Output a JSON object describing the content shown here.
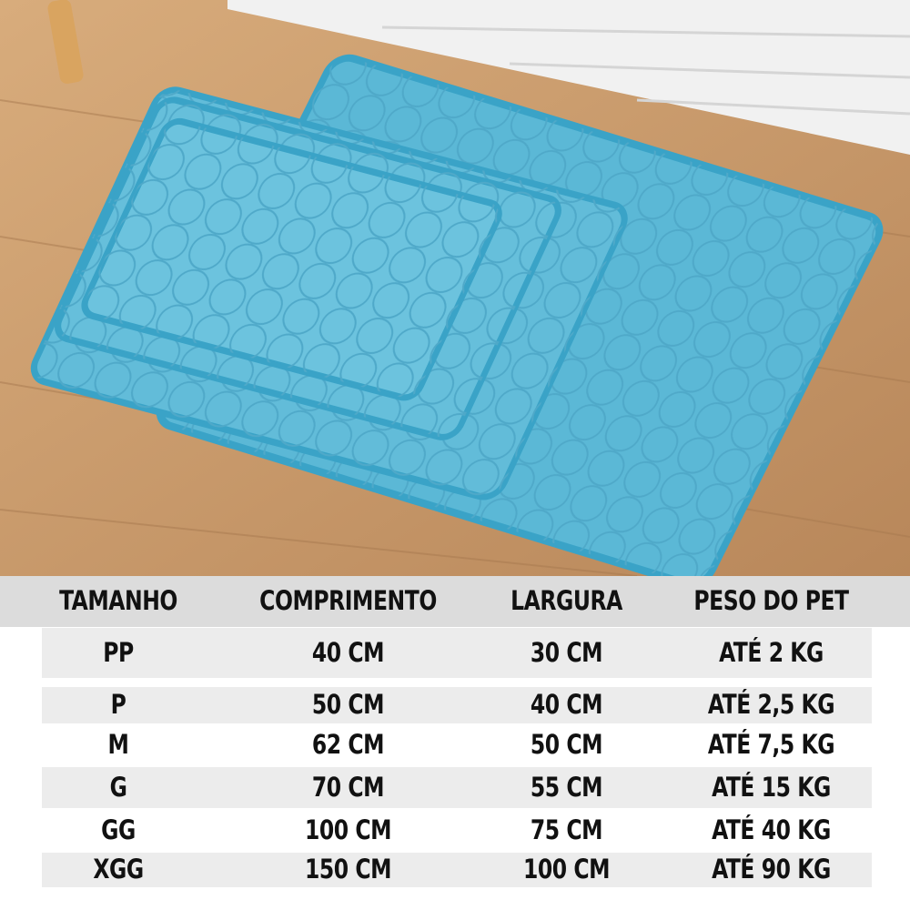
{
  "photo": {
    "subject": "blue-cooling-mats-stacked",
    "colors": {
      "mat": "#5bb8d6",
      "mat_edge": "#3aa3c7",
      "floor": "#c99b6a",
      "wall": "#f2f2f2"
    }
  },
  "size_table": {
    "headers": [
      "TAMANHO",
      "COMPRIMENTO",
      "LARGURA",
      "PESO DO PET"
    ],
    "rows": [
      [
        "PP",
        "40 CM",
        "30 CM",
        "ATÉ 2 KG"
      ],
      [
        "P",
        "50 CM",
        "40 CM",
        "ATÉ 2,5 KG"
      ],
      [
        "M",
        "62 CM",
        "50 CM",
        "ATÉ 7,5 KG"
      ],
      [
        "G",
        "70 CM",
        "55 CM",
        "ATÉ 15 KG"
      ],
      [
        "GG",
        "100 CM",
        "75 CM",
        "ATÉ 40 KG"
      ],
      [
        "XGG",
        "150 CM",
        "100 CM",
        "ATÉ 90 KG"
      ]
    ]
  }
}
